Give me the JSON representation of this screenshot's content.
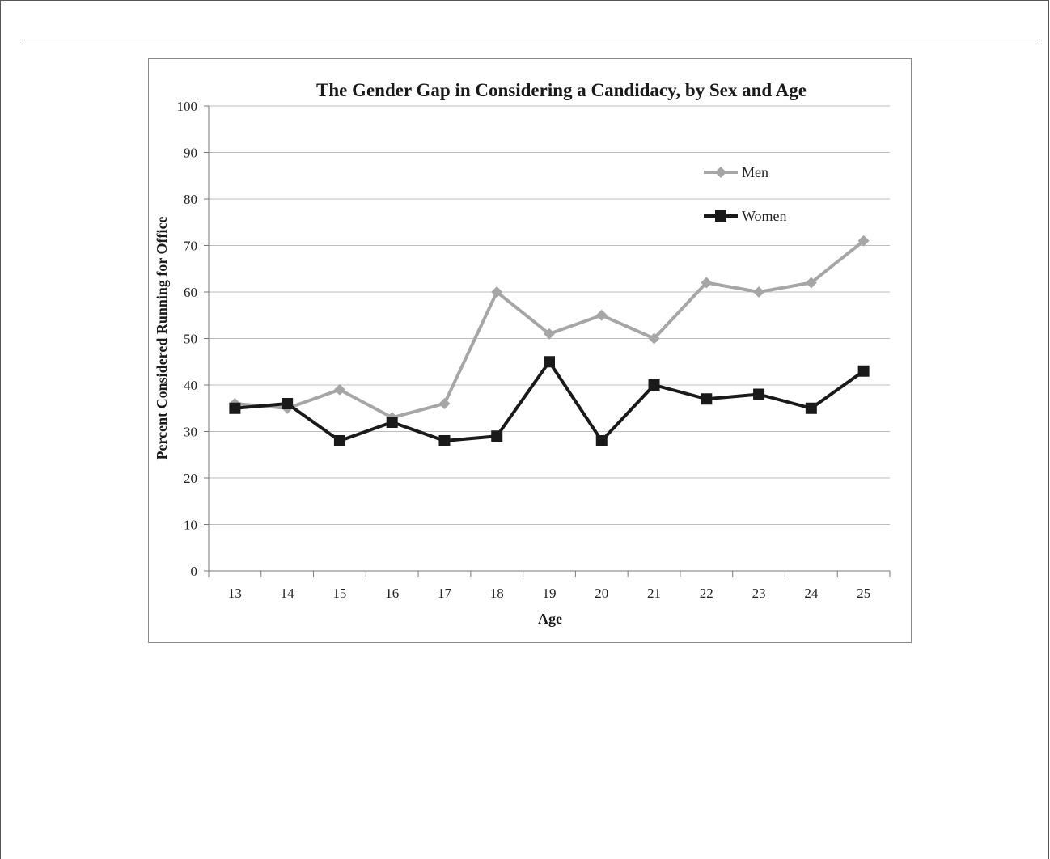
{
  "chart_data": {
    "type": "line",
    "title": "The Gender Gap in Considering a Candidacy, by Sex and Age",
    "xlabel": "Age",
    "ylabel": "Percent Considered Running for Office",
    "categories": [
      "13",
      "14",
      "15",
      "16",
      "17",
      "18",
      "19",
      "20",
      "21",
      "22",
      "23",
      "24",
      "25"
    ],
    "ylim": [
      0,
      100
    ],
    "yticks": [
      0,
      10,
      20,
      30,
      40,
      50,
      60,
      70,
      80,
      90,
      100
    ],
    "grid": "horizontal",
    "legend": "right",
    "series": [
      {
        "name": "Men",
        "color": "#a6a6a6",
        "marker": "diamond",
        "values": [
          36,
          35,
          39,
          33,
          36,
          60,
          51,
          55,
          50,
          62,
          60,
          62,
          71
        ]
      },
      {
        "name": "Women",
        "color": "#1a1a1a",
        "marker": "square",
        "values": [
          35,
          36,
          28,
          32,
          28,
          29,
          45,
          28,
          40,
          37,
          38,
          35,
          43
        ]
      }
    ]
  }
}
